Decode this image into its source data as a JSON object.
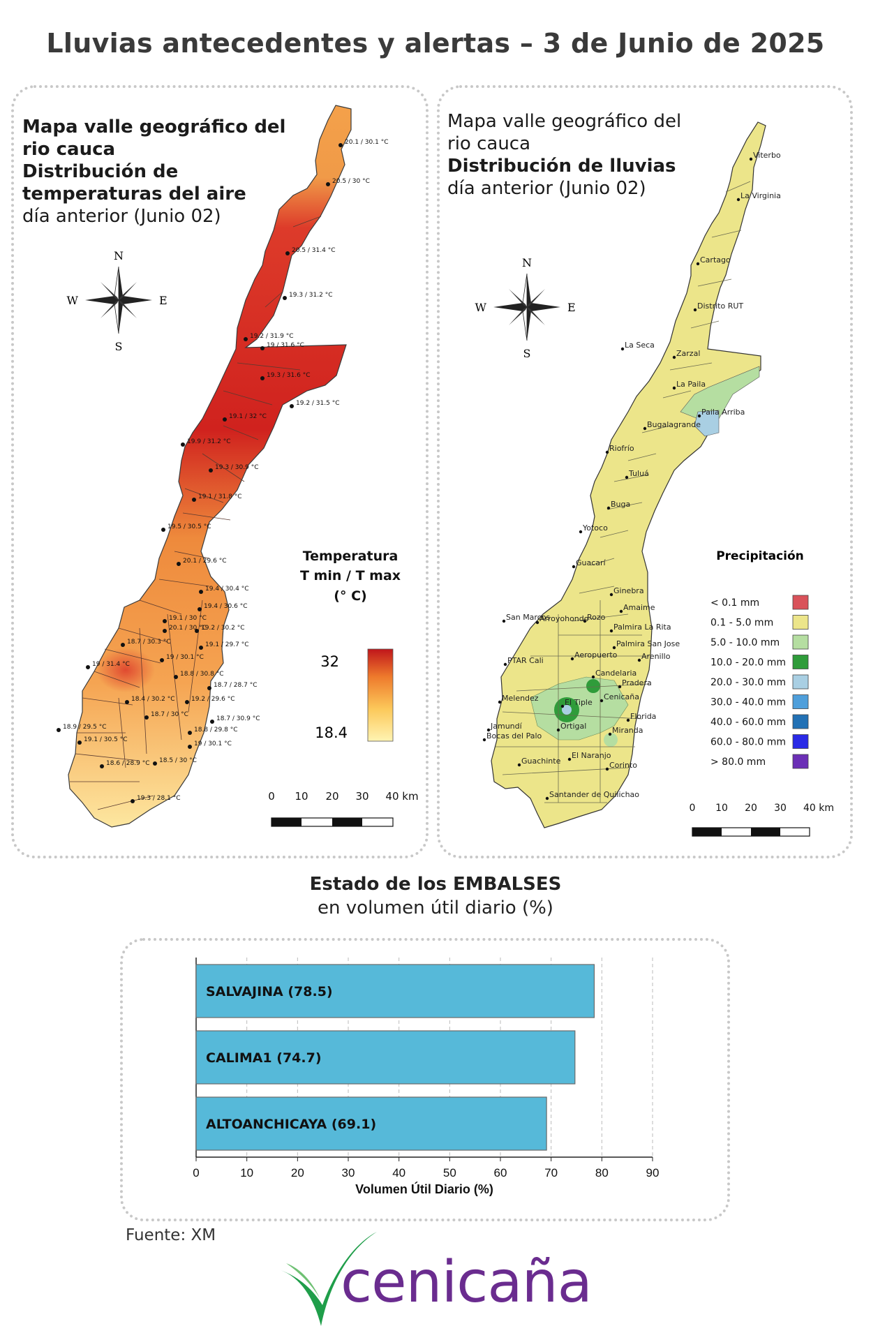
{
  "title": "Lluvias antecedentes y alertas – 3 de Junio de 2025",
  "temperature_map": {
    "title_bold": [
      "Mapa valle geográfico del",
      "rio cauca",
      "Distribución de",
      "temperaturas del aire"
    ],
    "subtitle": "día anterior (Junio 02)",
    "compass": {
      "n": "N",
      "s": "S",
      "e": "E",
      "w": "W"
    },
    "legend": {
      "title_lines": [
        "Temperatura",
        "T min / T max",
        "(° C)"
      ],
      "max": "32",
      "min": "18.4",
      "color_high": "#c0161b",
      "color_low": "#fff4b3"
    },
    "scale_labels": [
      "0",
      "10",
      "20",
      "30",
      "40 km"
    ],
    "stations": [
      "20.1 / 30.1 °C",
      "20.5 / 30 °C",
      "20.5 / 31.4 °C",
      "19.3 / 31.2 °C",
      "19.2 / 31.9 °C",
      "19 / 31.6 °C",
      "19.3 / 31.6 °C",
      "19.2 / 31.5 °C",
      "19.1 / 32 °C",
      "19.9 / 31.2 °C",
      "19.3 / 30.9 °C",
      "19.1 / 31.8 °C",
      "19.5 / 30.5 °C",
      "20.1 / 29.6 °C",
      "19.4 / 30.4 °C",
      "19.4 / 30.6 °C",
      "19.1 / 30 °C",
      "20.1 / 30 °C",
      "19.2 / 30.2 °C",
      "18.7 / 30.3 °C",
      "19.1 / 29.7 °C",
      "19 / 31.4 °C",
      "19 / 30.1 °C",
      "18.8 / 30.8 °C",
      "18.7 / 28.7 °C",
      "18.4 / 30.2 °C",
      "19.2 / 29.6 °C",
      "18.7 / 30 °C",
      "18.7 / 30.9 °C",
      "18.9 / 29.5 °C",
      "18.8 / 29.8 °C",
      "19.1 / 30.5 °C",
      "19 / 30.1 °C",
      "18.6 / 28.9 °C",
      "18.5 / 30 °C",
      "19.3 / 28.1 °C"
    ]
  },
  "rain_map": {
    "title_regular": [
      "Mapa valle geográfico del",
      "rio cauca"
    ],
    "title_bold": "Distribución de lluvias",
    "subtitle": "día anterior (Junio 02)",
    "compass": {
      "n": "N",
      "s": "S",
      "e": "E",
      "w": "W"
    },
    "legend": {
      "title": "Precipitación",
      "items": [
        {
          "label": "< 0.1 mm",
          "color": "#d9525a"
        },
        {
          "label": "0.1 - 5.0 mm",
          "color": "#ece58a"
        },
        {
          "label": "5.0 - 10.0 mm",
          "color": "#b5dea1"
        },
        {
          "label": "10.0 - 20.0 mm",
          "color": "#2f9c3a"
        },
        {
          "label": "20.0 - 30.0 mm",
          "color": "#a9cfe3"
        },
        {
          "label": "30.0 - 40.0 mm",
          "color": "#4f9fdb"
        },
        {
          "label": "40.0 - 60.0 mm",
          "color": "#2271b5"
        },
        {
          "label": "60.0 - 80.0 mm",
          "color": "#2a2ae6"
        },
        {
          "label": "> 80.0 mm",
          "color": "#6b2fb6"
        }
      ]
    },
    "scale_labels": [
      "0",
      "10",
      "20",
      "30",
      "40 km"
    ],
    "towns": [
      "Viterbo",
      "La Virginia",
      "Cartago",
      "Distrito RUT",
      "La Seca",
      "Zarzal",
      "La Paila",
      "Paila Arriba",
      "Bugalagrande",
      "Riofrío",
      "Tuluá",
      "Buga",
      "Yotoco",
      "Guacarí",
      "Ginebra",
      "Amaime",
      "San Marcos",
      "Rozo",
      "Palmira La Rita",
      "Arroyohondo",
      "Palmira San Jose",
      "Aeropuerto",
      "Arenillo",
      "PTAR Cali",
      "Candelaria",
      "Pradera",
      "Melendez",
      "El Tiple",
      "Cenicaña",
      "Florida",
      "Jamundí",
      "Bocas del Palo",
      "Ortigal",
      "Miranda",
      "Guachinte",
      "El Naranjo",
      "Corinto",
      "Santander de Quilichao"
    ]
  },
  "reservoirs": {
    "title": "Estado de los EMBALSES",
    "subtitle": "en volumen útil diario (%)",
    "chart_data": {
      "type": "bar",
      "orientation": "horizontal",
      "categories": [
        "SALVAJINA (78.5)",
        "CALIMA1 (74.7)",
        "ALTOANCHICAYA (69.1)"
      ],
      "values": [
        78.5,
        74.7,
        69.1
      ],
      "xlabel": "Volumen Útil Diario (%)",
      "xlim": [
        0,
        90
      ],
      "xticks": [
        "0",
        "10",
        "20",
        "30",
        "40",
        "50",
        "60",
        "70",
        "80",
        "90"
      ],
      "bar_color": "#56b9d9",
      "grid": true
    }
  },
  "source": "Fuente: XM",
  "logo": {
    "text": "cenicaña",
    "color_text": "#6a2c8f",
    "color_mark": "#1f9e4a"
  }
}
